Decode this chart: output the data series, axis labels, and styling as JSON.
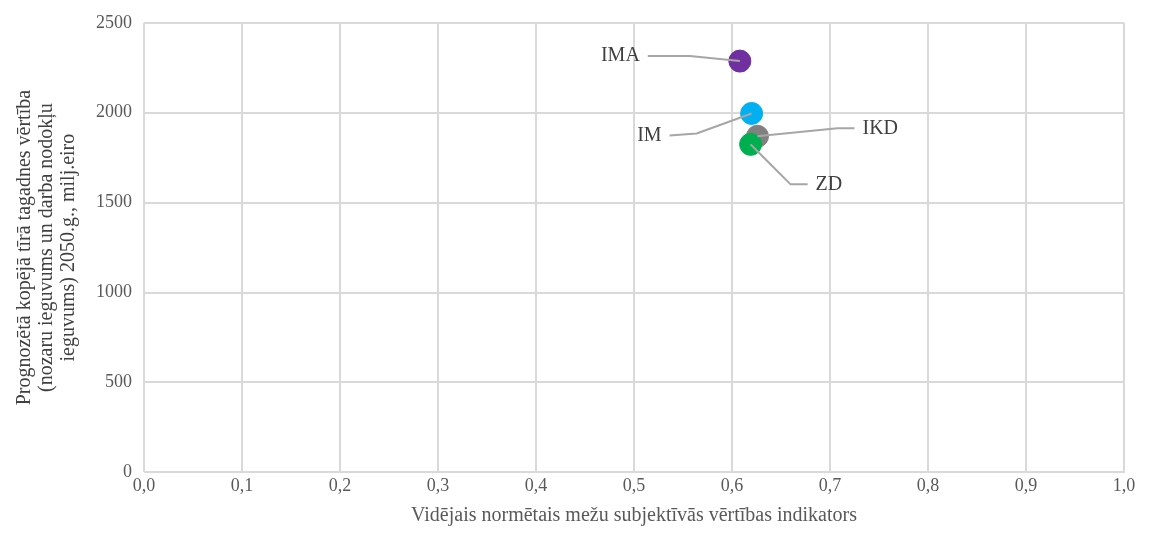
{
  "chart_data": {
    "type": "scatter",
    "xlabel": "Vidējais normētais mežu subjektīvās vērtības indikators",
    "ylabel": "Prognozētā kopējā tīrā tagadnes vērtība (nozaru ieguvums un darba nodokļu ieguvums) 2050.g., milj.eiro",
    "series": [
      {
        "name": "IMA",
        "color": "#7030a0",
        "x": [
          0.608
        ],
        "values": [
          2287
        ]
      },
      {
        "name": "IM",
        "color": "#00b0f0",
        "x": [
          0.62
        ],
        "values": [
          1996
        ]
      },
      {
        "name": "ZD",
        "color": "#00b050",
        "x": [
          0.619
        ],
        "values": [
          1824
        ]
      },
      {
        "name": "IKD",
        "color": "#808080",
        "x": [
          0.626
        ],
        "values": [
          1869
        ]
      }
    ],
    "xlim": [
      0,
      1
    ],
    "xticks": [
      {
        "value": 0,
        "label": "0,0"
      },
      {
        "value": 0.1,
        "label": "0,1"
      },
      {
        "value": 0.2,
        "label": "0,2"
      },
      {
        "value": 0.3,
        "label": "0,3"
      },
      {
        "value": 0.4,
        "label": "0,4"
      },
      {
        "value": 0.5,
        "label": "0,5"
      },
      {
        "value": 0.6,
        "label": "0,6"
      },
      {
        "value": 0.7,
        "label": "0,7"
      },
      {
        "value": 0.8,
        "label": "0,8"
      },
      {
        "value": 0.9,
        "label": "0,9"
      },
      {
        "value": 1,
        "label": "1,0"
      }
    ],
    "ylim": [
      0,
      2500
    ],
    "yticks": [
      0,
      500,
      1000,
      1500,
      2000,
      2500
    ],
    "grid": true,
    "legend": false,
    "marker": "circle"
  }
}
